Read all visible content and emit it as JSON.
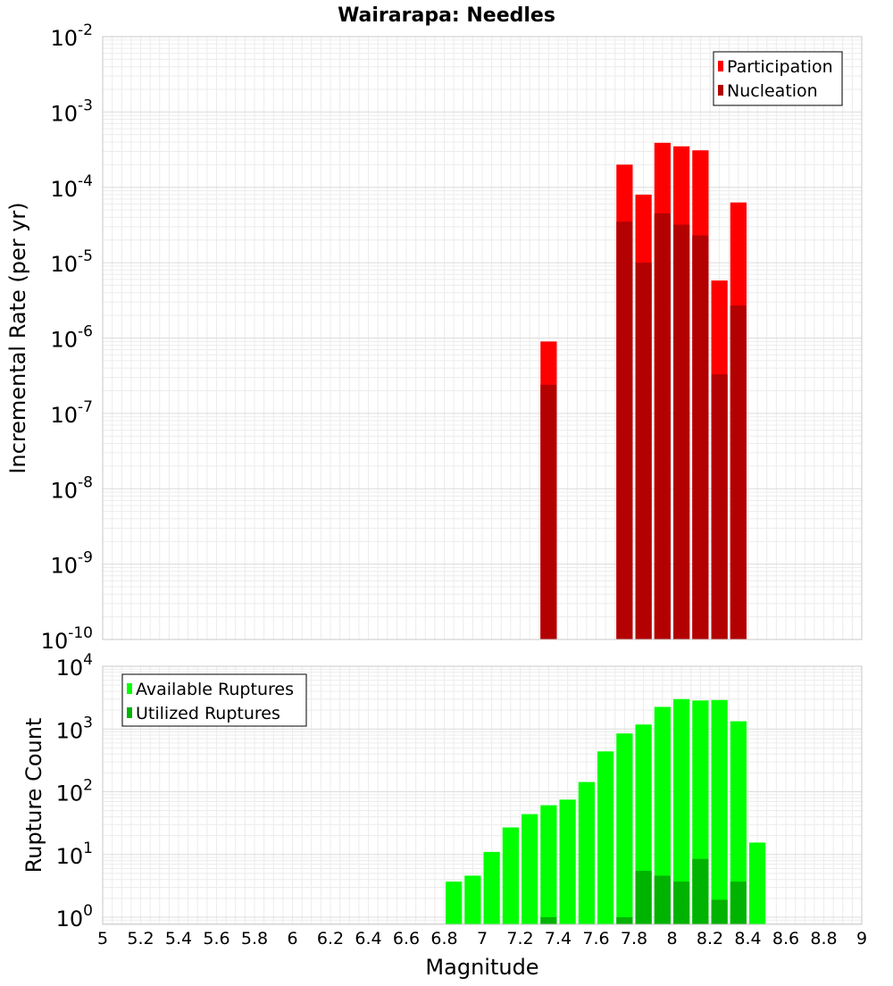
{
  "title": "Wairarapa: Needles",
  "chart_data": [
    {
      "type": "bar",
      "scale": "log",
      "ylabel": "Incremental Rate (per yr)",
      "ylim": [
        1e-10,
        0.01
      ],
      "xlim": [
        5,
        9
      ],
      "y_ticks": [
        {
          "base": "10",
          "exp": "-10"
        },
        {
          "base": "10",
          "exp": "-9"
        },
        {
          "base": "10",
          "exp": "-8"
        },
        {
          "base": "10",
          "exp": "-7"
        },
        {
          "base": "10",
          "exp": "-6"
        },
        {
          "base": "10",
          "exp": "-5"
        },
        {
          "base": "10",
          "exp": "-4"
        },
        {
          "base": "10",
          "exp": "-3"
        },
        {
          "base": "10",
          "exp": "-2"
        }
      ],
      "legend": [
        {
          "label": "Participation",
          "color": "#ff0000"
        },
        {
          "label": "Nucleation",
          "color": "#b30000"
        }
      ],
      "legend_position": "top-right",
      "series": [
        {
          "name": "Participation",
          "color": "#ff0000",
          "x": [
            7.35,
            7.75,
            7.85,
            7.95,
            8.05,
            8.15,
            8.25,
            8.35
          ],
          "values": [
            9e-07,
            0.0002,
            8e-05,
            0.00039,
            0.00035,
            0.00031,
            5.8e-06,
            6.3e-05
          ]
        },
        {
          "name": "Nucleation",
          "color": "#b30000",
          "x": [
            7.35,
            7.75,
            7.85,
            7.95,
            8.05,
            8.15,
            8.25,
            8.35
          ],
          "values": [
            2.4e-07,
            3.5e-05,
            1e-05,
            4.5e-05,
            3.2e-05,
            2.3e-05,
            3.3e-07,
            2.7e-06
          ]
        }
      ]
    },
    {
      "type": "bar",
      "scale": "log",
      "xlabel": "Magnitude",
      "ylabel": "Rupture Count",
      "ylim": [
        0.77,
        10000
      ],
      "xlim": [
        5,
        9
      ],
      "x_ticks": [
        "5",
        "5.2",
        "5.4",
        "5.6",
        "5.8",
        "6",
        "6.2",
        "6.4",
        "6.6",
        "6.8",
        "7",
        "7.2",
        "7.4",
        "7.6",
        "7.8",
        "8",
        "8.2",
        "8.4",
        "8.6",
        "8.8",
        "9"
      ],
      "y_ticks": [
        {
          "base": "10",
          "exp": "0"
        },
        {
          "base": "10",
          "exp": "1"
        },
        {
          "base": "10",
          "exp": "2"
        },
        {
          "base": "10",
          "exp": "3"
        },
        {
          "base": "10",
          "exp": "4"
        }
      ],
      "legend": [
        {
          "label": "Available Ruptures",
          "color": "#00ff00"
        },
        {
          "label": "Utilized Ruptures",
          "color": "#00b300"
        }
      ],
      "legend_position": "top-left",
      "series": [
        {
          "name": "Available Ruptures",
          "color": "#00ff00",
          "x": [
            6.85,
            6.95,
            7.05,
            7.15,
            7.25,
            7.35,
            7.45,
            7.55,
            7.65,
            7.75,
            7.85,
            7.95,
            8.05,
            8.15,
            8.25,
            8.35,
            8.45
          ],
          "values": [
            3.7,
            4.6,
            11,
            27,
            44,
            61,
            75,
            143,
            440,
            850,
            1180,
            2250,
            3000,
            2850,
            2900,
            1330,
            15.5
          ]
        },
        {
          "name": "Utilized Ruptures",
          "color": "#00b300",
          "x": [
            7.35,
            7.75,
            7.85,
            7.95,
            8.05,
            8.15,
            8.25,
            8.35
          ],
          "values": [
            1,
            1,
            5.5,
            4.6,
            3.7,
            8.5,
            1.9,
            3.7
          ]
        }
      ]
    }
  ]
}
